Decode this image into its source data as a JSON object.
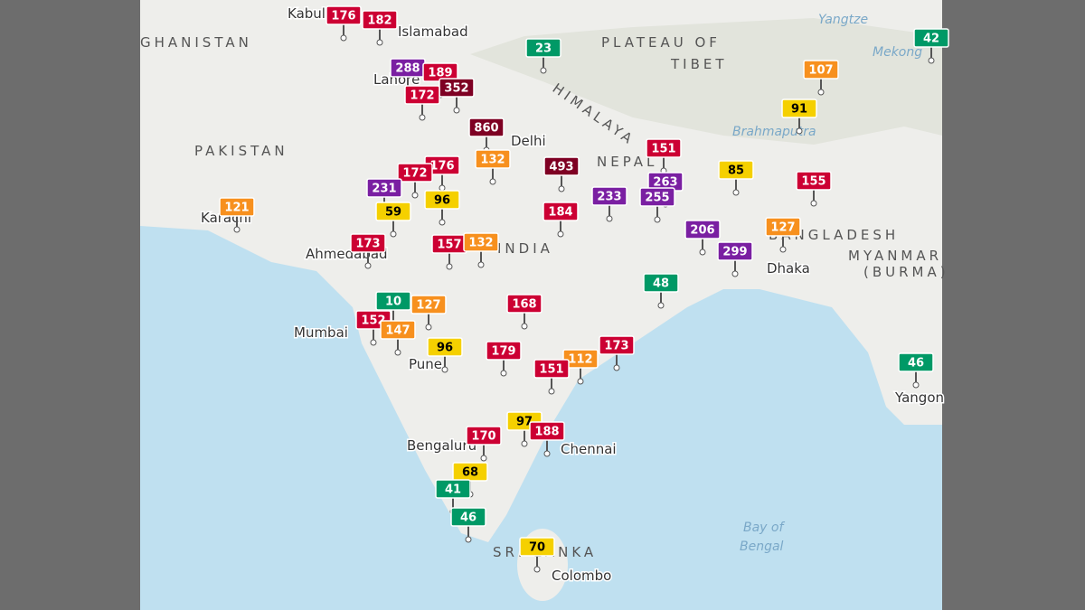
{
  "places": [
    "Kabul",
    "Islamabad",
    "GHANISTAN",
    "PLATEAU OF",
    "TIBET",
    "Yangtze",
    "Mekong",
    "Brahmaputra",
    "PAKISTAN",
    "Lahore",
    "Delhi",
    "NEPAL",
    "Karachi",
    "Ahmedabad",
    "INDIA",
    "BANGLADESH",
    "Dhaka",
    "MYANMAR",
    "(BURMA)",
    "Mumbai",
    "Pune",
    "Bengaluru",
    "Chennai",
    "Yangon",
    "Bay of",
    "Bengal",
    "SRI LANKA",
    "Colombo",
    "HIMALAYA"
  ],
  "markers": [
    {
      "value": 176,
      "color": "#cc0033"
    },
    {
      "value": 182,
      "color": "#cc0033"
    },
    {
      "value": 23,
      "color": "#009966"
    },
    {
      "value": 42,
      "color": "#009966"
    },
    {
      "value": 288,
      "color": "#7a1fa2"
    },
    {
      "value": 189,
      "color": "#cc0033"
    },
    {
      "value": 352,
      "color": "#7e0023"
    },
    {
      "value": 172,
      "color": "#cc0033"
    },
    {
      "value": 493,
      "color": "#7e0023"
    },
    {
      "value": 860,
      "color": "#7e0023"
    },
    {
      "value": 107,
      "color": "#f7901e"
    },
    {
      "value": 91,
      "color": "#f5d000"
    },
    {
      "value": 151,
      "color": "#cc0033"
    },
    {
      "value": 85,
      "color": "#f5d000"
    },
    {
      "value": 155,
      "color": "#cc0033"
    },
    {
      "value": 263,
      "color": "#7a1fa2"
    },
    {
      "value": 233,
      "color": "#7a1fa2"
    },
    {
      "value": 255,
      "color": "#7a1fa2"
    },
    {
      "value": 176,
      "color": "#cc0033"
    },
    {
      "value": 172,
      "color": "#cc0033"
    },
    {
      "value": 132,
      "color": "#f7901e"
    },
    {
      "value": 231,
      "color": "#7a1fa2"
    },
    {
      "value": 96,
      "color": "#f5d000"
    },
    {
      "value": 59,
      "color": "#f5d000"
    },
    {
      "value": 184,
      "color": "#cc0033"
    },
    {
      "value": 121,
      "color": "#f7901e"
    },
    {
      "value": 206,
      "color": "#7a1fa2"
    },
    {
      "value": 127,
      "color": "#f7901e"
    },
    {
      "value": 299,
      "color": "#7a1fa2"
    },
    {
      "value": 173,
      "color": "#cc0033"
    },
    {
      "value": 157,
      "color": "#cc0033"
    },
    {
      "value": 132,
      "color": "#f7901e"
    },
    {
      "value": 48,
      "color": "#009966"
    },
    {
      "value": 10,
      "color": "#009966"
    },
    {
      "value": 127,
      "color": "#f7901e"
    },
    {
      "value": 168,
      "color": "#cc0033"
    },
    {
      "value": 152,
      "color": "#cc0033"
    },
    {
      "value": 147,
      "color": "#f7901e"
    },
    {
      "value": 96,
      "color": "#f5d000"
    },
    {
      "value": 179,
      "color": "#cc0033"
    },
    {
      "value": 173,
      "color": "#cc0033"
    },
    {
      "value": 112,
      "color": "#f7901e"
    },
    {
      "value": 151,
      "color": "#cc0033"
    },
    {
      "value": 46,
      "color": "#009966"
    },
    {
      "value": 97,
      "color": "#f5d000"
    },
    {
      "value": 188,
      "color": "#cc0033"
    },
    {
      "value": 170,
      "color": "#cc0033"
    },
    {
      "value": 68,
      "color": "#f5d000"
    },
    {
      "value": 41,
      "color": "#009966"
    },
    {
      "value": 46,
      "color": "#009966"
    },
    {
      "value": 70,
      "color": "#f5d000"
    }
  ]
}
